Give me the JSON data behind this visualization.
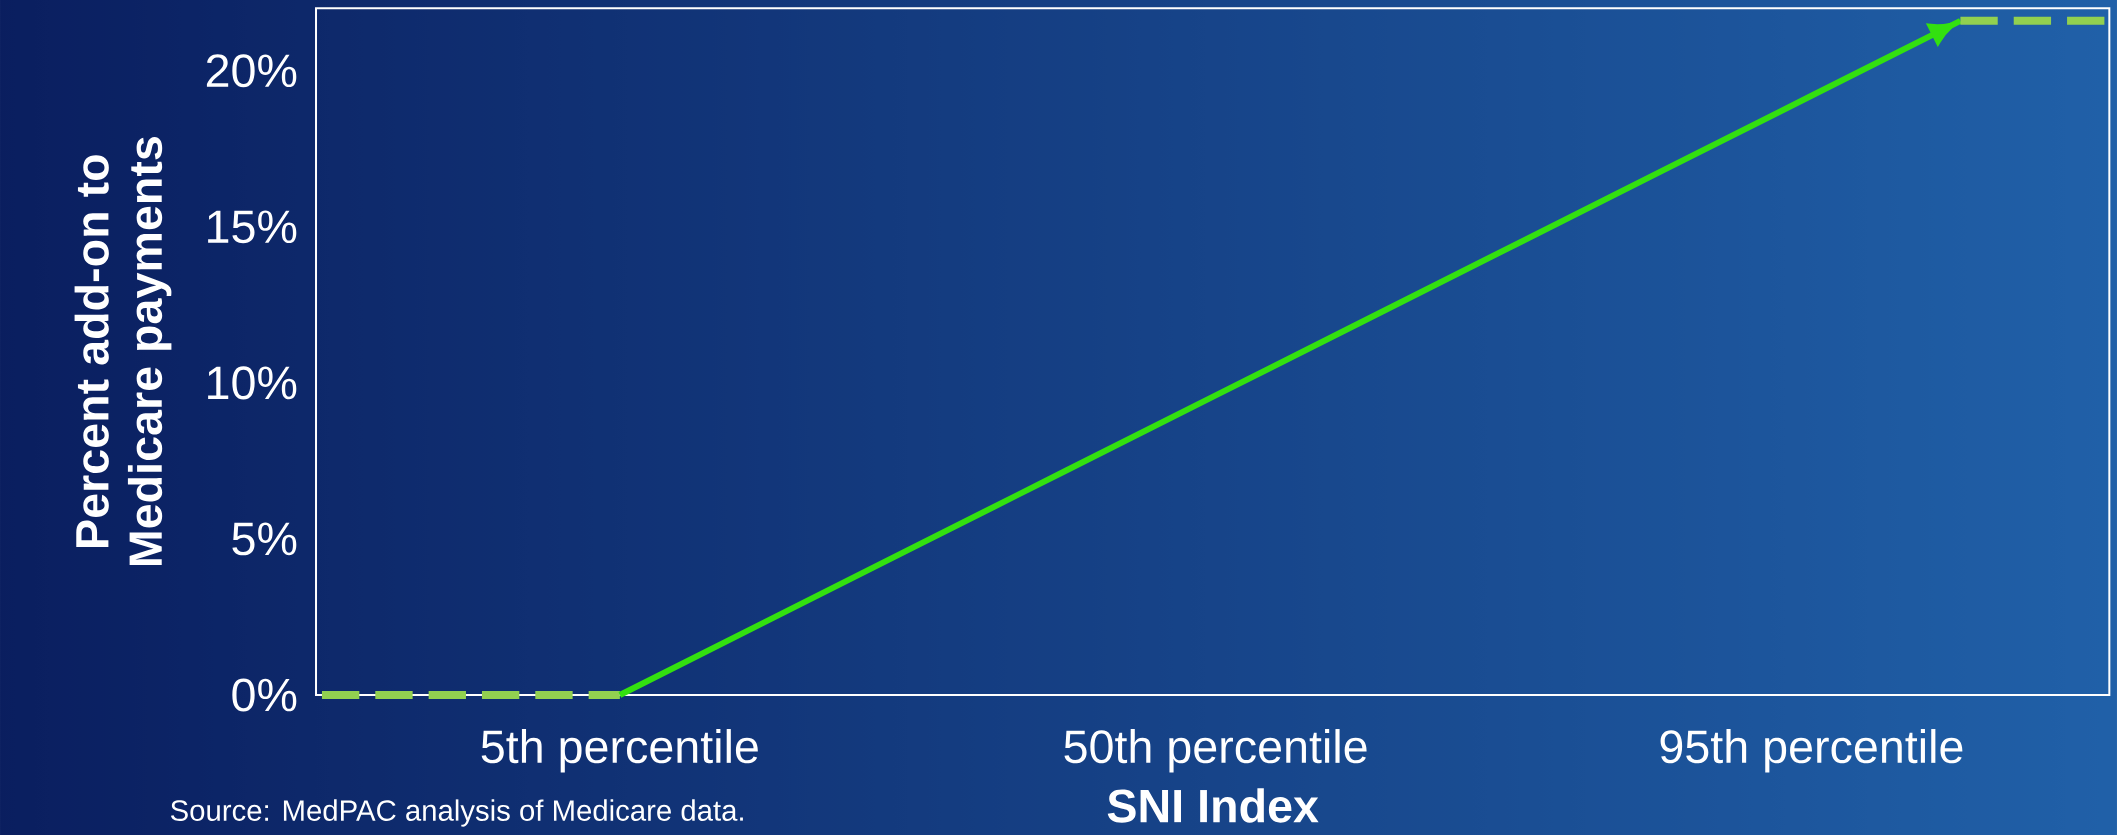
{
  "chart_data": {
    "type": "line",
    "xlabel": "SNI Index",
    "ylabel": "Percent add-on to Medicare payments",
    "categories": [
      null,
      null,
      "5th percentile",
      null,
      null,
      null,
      "50th percentile",
      null,
      null,
      null,
      "95th percentile",
      null,
      null
    ],
    "ylim": [
      0,
      22
    ],
    "yticks": [
      {
        "value": 0,
        "label": "0%"
      },
      {
        "value": 5,
        "label": "5%"
      },
      {
        "value": 10,
        "label": "10%"
      },
      {
        "value": 15,
        "label": "15%"
      },
      {
        "value": 20,
        "label": "20%"
      }
    ],
    "series": [
      {
        "color": "#92d050",
        "line_style": "dashed",
        "values": [
          0,
          0,
          0,
          null,
          null,
          null,
          null,
          null,
          null,
          null,
          null,
          null,
          null
        ]
      },
      {
        "color": "#33e010",
        "line_style": "solid",
        "values": [
          null,
          null,
          0,
          2.4,
          4.8,
          7.2,
          9.6,
          12,
          14.4,
          16.8,
          19.2,
          21.6,
          null
        ]
      },
      {
        "color": "#92d050",
        "line_style": "dashed",
        "values": [
          null,
          null,
          null,
          null,
          null,
          null,
          null,
          null,
          null,
          null,
          null,
          21.6,
          21.6
        ]
      }
    ],
    "grid": false,
    "annotations": [
      "Source: MedPAC analysis of Medicare data."
    ]
  }
}
